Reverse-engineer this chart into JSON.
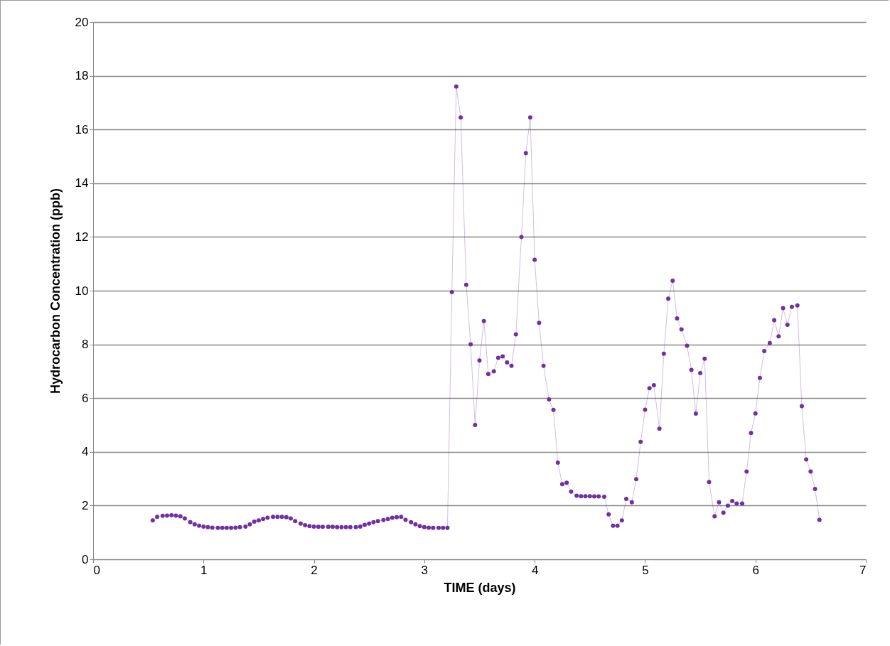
{
  "chart_data": {
    "type": "line",
    "xlabel": "TIME (days)",
    "ylabel": "Hydrocarbon Concentration (ppb)",
    "xlim": [
      0,
      7
    ],
    "xticks": [
      0,
      1,
      2,
      3,
      4,
      5,
      6,
      7
    ],
    "ylim": [
      0,
      20
    ],
    "yticks": [
      0,
      2,
      4,
      6,
      8,
      10,
      12,
      14,
      16,
      18,
      20
    ],
    "grid": "y",
    "marker": "circle",
    "series": [
      {
        "color": "#7030a0",
        "x": [
          0.54,
          0.58,
          0.63,
          0.67,
          0.71,
          0.75,
          0.79,
          0.83,
          0.88,
          0.92,
          0.96,
          1.0,
          1.04,
          1.08,
          1.13,
          1.17,
          1.21,
          1.25,
          1.29,
          1.33,
          1.38,
          1.42,
          1.46,
          1.5,
          1.54,
          1.58,
          1.63,
          1.67,
          1.71,
          1.75,
          1.79,
          1.83,
          1.88,
          1.92,
          1.96,
          2.0,
          2.04,
          2.08,
          2.13,
          2.17,
          2.21,
          2.25,
          2.29,
          2.33,
          2.38,
          2.42,
          2.46,
          2.5,
          2.54,
          2.58,
          2.63,
          2.67,
          2.71,
          2.75,
          2.79,
          2.83,
          2.88,
          2.92,
          2.96,
          3.0,
          3.04,
          3.08,
          3.13,
          3.17,
          3.21,
          3.25,
          3.29,
          3.33,
          3.38,
          3.42,
          3.46,
          3.5,
          3.54,
          3.58,
          3.63,
          3.67,
          3.71,
          3.75,
          3.79,
          3.83,
          3.88,
          3.92,
          3.96,
          4.0,
          4.04,
          4.08,
          4.13,
          4.17,
          4.21,
          4.25,
          4.29,
          4.33,
          4.38,
          4.42,
          4.46,
          4.5,
          4.54,
          4.58,
          4.63,
          4.67,
          4.71,
          4.75,
          4.79,
          4.83,
          4.88,
          4.92,
          4.96,
          5.0,
          5.04,
          5.08,
          5.13,
          5.17,
          5.21,
          5.25,
          5.29,
          5.33,
          5.38,
          5.42,
          5.46,
          5.5,
          5.54,
          5.58,
          5.63,
          5.67,
          5.71,
          5.75,
          5.79,
          5.83,
          5.88,
          5.92,
          5.96,
          6.0,
          6.04,
          6.08,
          6.13,
          6.17,
          6.21,
          6.25,
          6.29,
          6.33,
          6.38,
          6.42,
          6.46,
          6.5,
          6.54,
          6.58
        ],
        "values": [
          1.45,
          1.58,
          1.62,
          1.63,
          1.64,
          1.63,
          1.6,
          1.52,
          1.38,
          1.3,
          1.25,
          1.22,
          1.2,
          1.18,
          1.17,
          1.17,
          1.17,
          1.17,
          1.18,
          1.2,
          1.22,
          1.3,
          1.4,
          1.45,
          1.5,
          1.55,
          1.58,
          1.58,
          1.58,
          1.57,
          1.52,
          1.42,
          1.33,
          1.27,
          1.24,
          1.22,
          1.21,
          1.21,
          1.21,
          1.21,
          1.2,
          1.2,
          1.2,
          1.2,
          1.2,
          1.22,
          1.28,
          1.33,
          1.38,
          1.42,
          1.46,
          1.5,
          1.55,
          1.57,
          1.58,
          1.47,
          1.38,
          1.3,
          1.24,
          1.2,
          1.18,
          1.17,
          1.17,
          1.17,
          1.17,
          9.95,
          17.6,
          16.45,
          10.22,
          8.0,
          5.0,
          7.4,
          8.87,
          6.9,
          7.0,
          7.5,
          7.55,
          7.33,
          7.2,
          8.37,
          12.0,
          15.12,
          16.45,
          11.15,
          8.8,
          7.2,
          5.95,
          5.56,
          3.6,
          2.8,
          2.85,
          2.52,
          2.37,
          2.35,
          2.35,
          2.35,
          2.34,
          2.34,
          2.33,
          1.67,
          1.25,
          1.25,
          1.45,
          2.25,
          2.12,
          2.98,
          4.37,
          5.57,
          6.37,
          6.48,
          4.86,
          7.65,
          9.7,
          10.37,
          8.97,
          8.56,
          7.95,
          7.05,
          5.42,
          6.93,
          7.47,
          2.88,
          1.6,
          2.12,
          1.73,
          2.0,
          2.17,
          2.08,
          2.08,
          3.27,
          4.7,
          5.43,
          6.75,
          7.75,
          8.05,
          8.9,
          8.3,
          9.35,
          8.73,
          9.4,
          9.45,
          5.7,
          3.72,
          3.27,
          2.62,
          1.47
        ]
      }
    ]
  }
}
